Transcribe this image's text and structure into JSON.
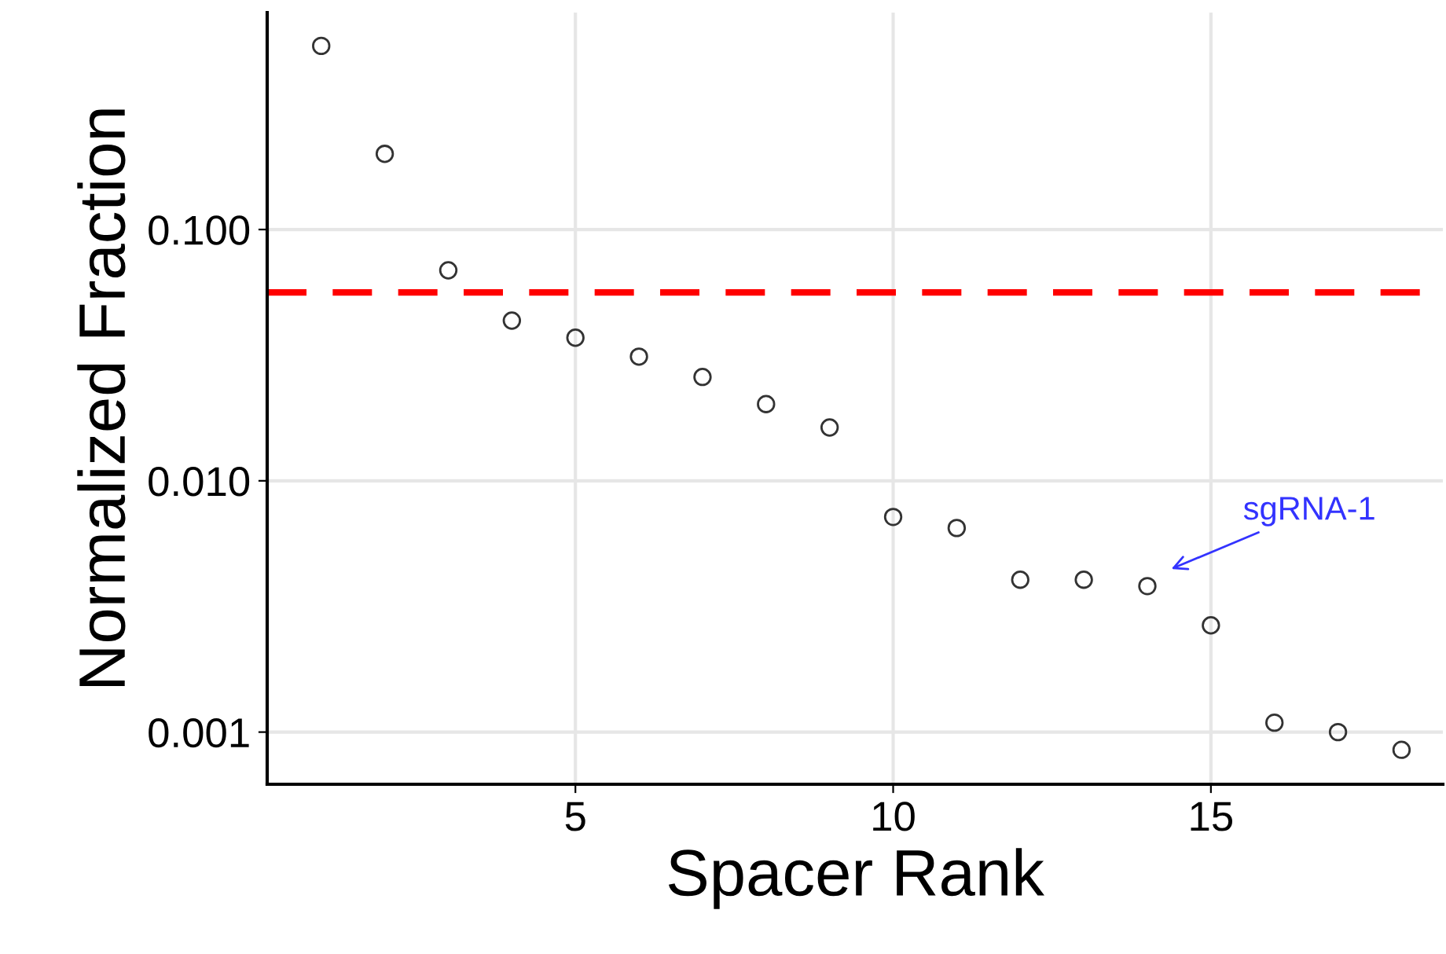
{
  "chart_data": {
    "type": "scatter",
    "xlabel": "Spacer Rank",
    "ylabel": "Normalized Fraction",
    "x": [
      1,
      2,
      3,
      4,
      5,
      6,
      7,
      8,
      9,
      10,
      11,
      12,
      13,
      14,
      15,
      16,
      17,
      18
    ],
    "series": [
      {
        "color": "#333333",
        "values": [
          0.538,
          0.2,
          0.0688,
          0.0434,
          0.0371,
          0.0312,
          0.0259,
          0.0202,
          0.0163,
          0.00718,
          0.00649,
          0.00404,
          0.00404,
          0.00381,
          0.00266,
          0.00109,
          0.001,
          0.00085
        ]
      }
    ],
    "log": "y",
    "marker": "circle",
    "grid": true,
    "xlim": [
      0.15,
      18.65
    ],
    "xticks": [
      5,
      10,
      15
    ],
    "ylim": [
      0.00062,
      0.73
    ],
    "yticks": [
      {
        "value": 0.001,
        "label": "0.001"
      },
      {
        "value": 0.01,
        "label": "0.010"
      },
      {
        "value": 0.1,
        "label": "0.100"
      }
    ],
    "ref_lines": [
      {
        "axis": "y",
        "value": 0.0562,
        "color": "#ff0000",
        "line_style": "dashed"
      }
    ],
    "annotations": [
      "sgRNA-1"
    ]
  }
}
